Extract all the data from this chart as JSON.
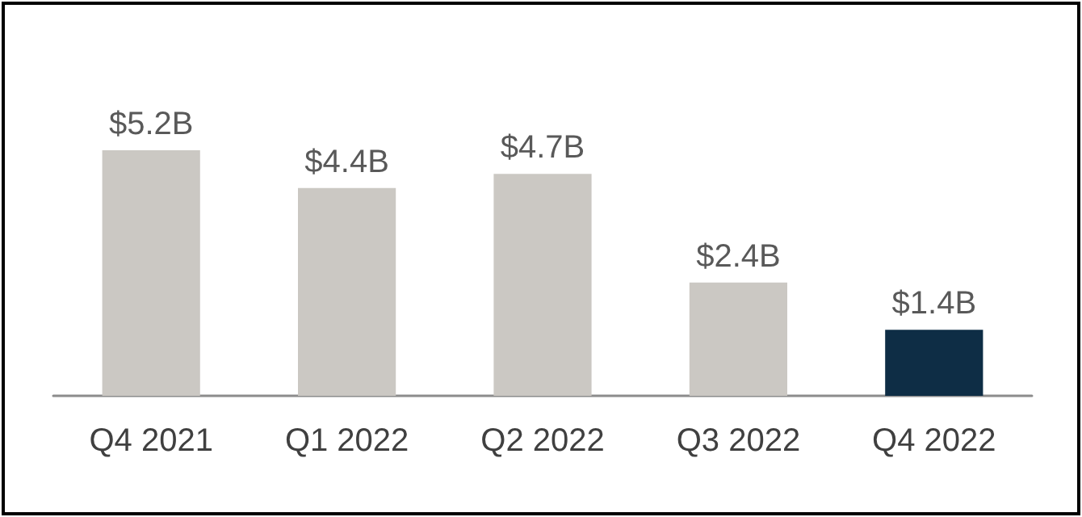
{
  "chart_data": {
    "type": "bar",
    "categories": [
      "Q4 2021",
      "Q1 2022",
      "Q2 2022",
      "Q3 2022",
      "Q4 2022"
    ],
    "values": [
      5.2,
      4.4,
      4.7,
      2.4,
      1.4
    ],
    "colors": [
      "#cbc8c3",
      "#cbc8c3",
      "#cbc8c3",
      "#cbc8c3",
      "#0e2d45"
    ],
    "value_labels": [
      "$5.2B",
      "$4.4B",
      "$4.7B",
      "$2.4B",
      "$1.4B"
    ]
  }
}
